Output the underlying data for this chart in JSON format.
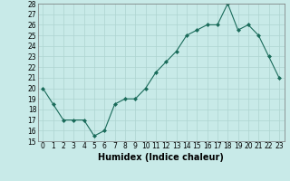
{
  "x": [
    0,
    1,
    2,
    3,
    4,
    5,
    6,
    7,
    8,
    9,
    10,
    11,
    12,
    13,
    14,
    15,
    16,
    17,
    18,
    19,
    20,
    21,
    22,
    23
  ],
  "y": [
    20,
    18.5,
    17,
    17,
    17,
    15.5,
    16,
    18.5,
    19,
    19,
    20,
    21.5,
    22.5,
    23.5,
    25,
    25.5,
    26,
    26,
    28,
    25.5,
    26,
    25,
    23,
    21
  ],
  "line_color": "#1a6b5a",
  "marker": "D",
  "marker_size": 2,
  "bg_color": "#c8eae8",
  "grid_color": "#aed4d0",
  "xlabel": "Humidex (Indice chaleur)",
  "ylim": [
    15,
    28
  ],
  "xlim": [
    -0.5,
    23.5
  ],
  "yticks": [
    15,
    16,
    17,
    18,
    19,
    20,
    21,
    22,
    23,
    24,
    25,
    26,
    27,
    28
  ],
  "xticks": [
    0,
    1,
    2,
    3,
    4,
    5,
    6,
    7,
    8,
    9,
    10,
    11,
    12,
    13,
    14,
    15,
    16,
    17,
    18,
    19,
    20,
    21,
    22,
    23
  ],
  "tick_label_fontsize": 5.5,
  "xlabel_fontsize": 7
}
